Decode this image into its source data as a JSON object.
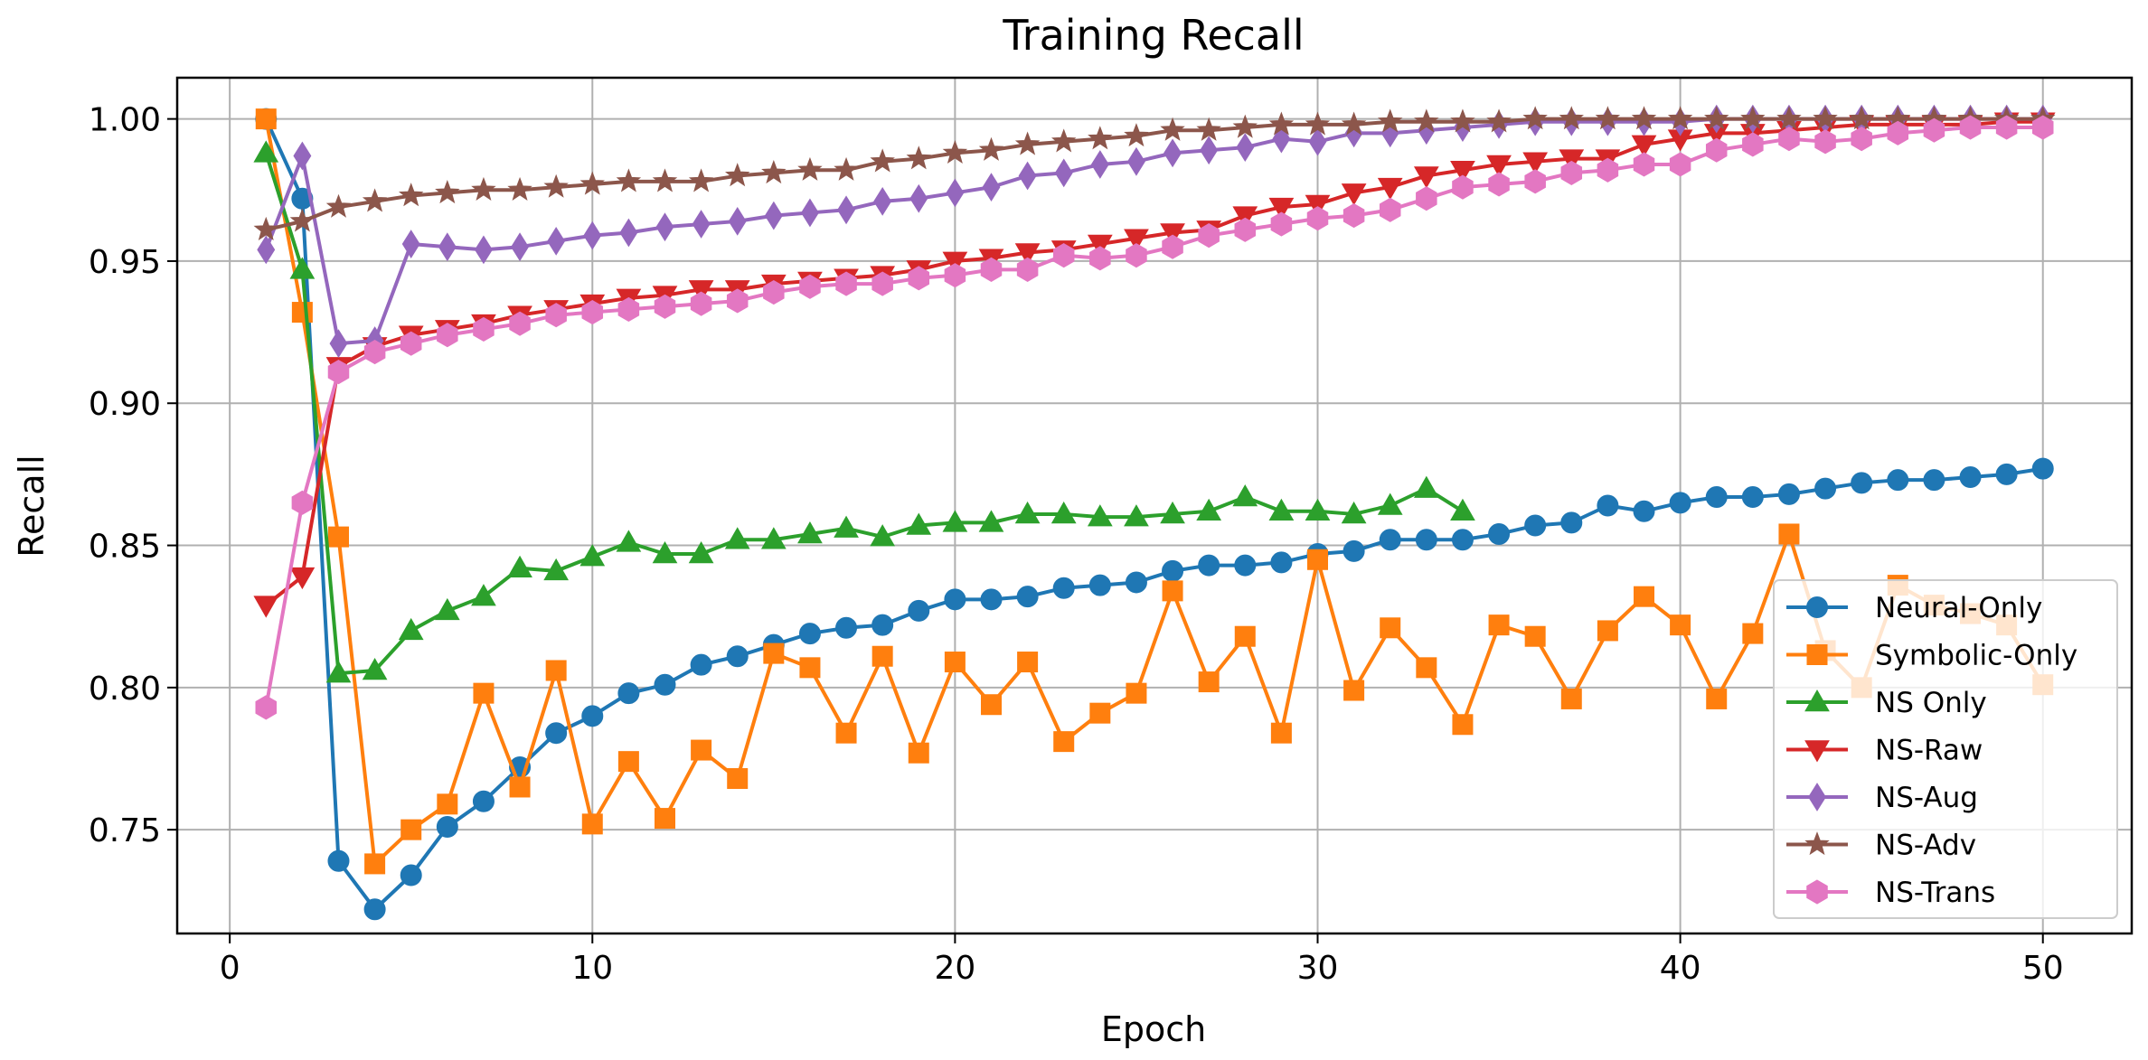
{
  "chart_data": {
    "type": "line",
    "title": "Training Recall",
    "xlabel": "Epoch",
    "ylabel": "Recall",
    "xlim": [
      -1.45,
      52.45
    ],
    "ylim": [
      0.7135,
      1.0145
    ],
    "xticks": [
      0,
      10,
      20,
      30,
      40,
      50
    ],
    "yticks": [
      0.75,
      0.8,
      0.85,
      0.9,
      0.95,
      1.0
    ],
    "xtick_labels": [
      "0",
      "10",
      "20",
      "30",
      "40",
      "50"
    ],
    "ytick_labels": [
      "0.75",
      "0.80",
      "0.85",
      "0.90",
      "0.95",
      "1.00"
    ],
    "grid": true,
    "legend_position": "lower-right",
    "series": [
      {
        "name": "Neural-Only",
        "color": "#1f77b4",
        "marker": "circle",
        "x": [
          1,
          2,
          3,
          4,
          5,
          6,
          7,
          8,
          9,
          10,
          11,
          12,
          13,
          14,
          15,
          16,
          17,
          18,
          19,
          20,
          21,
          22,
          23,
          24,
          25,
          26,
          27,
          28,
          29,
          30,
          31,
          32,
          33,
          34,
          35,
          36,
          37,
          38,
          39,
          40,
          41,
          42,
          43,
          44,
          45,
          46,
          47,
          48,
          49,
          50
        ],
        "values": [
          1.0,
          0.972,
          0.739,
          0.722,
          0.734,
          0.751,
          0.76,
          0.772,
          0.784,
          0.79,
          0.798,
          0.801,
          0.808,
          0.811,
          0.815,
          0.819,
          0.821,
          0.822,
          0.827,
          0.831,
          0.831,
          0.832,
          0.835,
          0.836,
          0.837,
          0.841,
          0.843,
          0.843,
          0.844,
          0.847,
          0.848,
          0.852,
          0.852,
          0.852,
          0.854,
          0.857,
          0.858,
          0.864,
          0.862,
          0.865,
          0.867,
          0.867,
          0.868,
          0.87,
          0.872,
          0.873,
          0.873,
          0.874,
          0.875,
          0.877
        ]
      },
      {
        "name": "Symbolic-Only",
        "color": "#ff7f0e",
        "marker": "square",
        "x": [
          1,
          2,
          3,
          4,
          5,
          6,
          7,
          8,
          9,
          10,
          11,
          12,
          13,
          14,
          15,
          16,
          17,
          18,
          19,
          20,
          21,
          22,
          23,
          24,
          25,
          26,
          27,
          28,
          29,
          30,
          31,
          32,
          33,
          34,
          35,
          36,
          37,
          38,
          39,
          40,
          41,
          42,
          43,
          44,
          45,
          46,
          47,
          48,
          49,
          50
        ],
        "values": [
          1.0,
          0.932,
          0.853,
          0.738,
          0.75,
          0.759,
          0.798,
          0.765,
          0.806,
          0.752,
          0.774,
          0.754,
          0.778,
          0.768,
          0.812,
          0.807,
          0.784,
          0.811,
          0.777,
          0.809,
          0.794,
          0.809,
          0.781,
          0.791,
          0.798,
          0.834,
          0.802,
          0.818,
          0.784,
          0.845,
          0.799,
          0.821,
          0.807,
          0.787,
          0.822,
          0.818,
          0.796,
          0.82,
          0.832,
          0.822,
          0.796,
          0.819,
          0.854,
          0.813,
          0.8,
          0.836,
          0.829,
          0.826,
          0.822,
          0.801
        ]
      },
      {
        "name": "NS Only",
        "color": "#2ca02c",
        "marker": "triangle-up",
        "x": [
          1,
          2,
          3,
          4,
          5,
          6,
          7,
          8,
          9,
          10,
          11,
          12,
          13,
          14,
          15,
          16,
          17,
          18,
          19,
          20,
          21,
          22,
          23,
          24,
          25,
          26,
          27,
          28,
          29,
          30,
          31,
          32,
          33,
          34
        ],
        "values": [
          0.988,
          0.947,
          0.805,
          0.806,
          0.82,
          0.827,
          0.832,
          0.842,
          0.841,
          0.846,
          0.851,
          0.847,
          0.847,
          0.852,
          0.852,
          0.854,
          0.856,
          0.853,
          0.857,
          0.858,
          0.858,
          0.861,
          0.861,
          0.86,
          0.86,
          0.861,
          0.862,
          0.867,
          0.862,
          0.862,
          0.861,
          0.864,
          0.87,
          0.862
        ]
      },
      {
        "name": "NS-Raw",
        "color": "#d62728",
        "marker": "triangle-down",
        "x": [
          1,
          2,
          3,
          4,
          5,
          6,
          7,
          8,
          9,
          10,
          11,
          12,
          13,
          14,
          15,
          16,
          17,
          18,
          19,
          20,
          21,
          22,
          23,
          24,
          25,
          26,
          27,
          28,
          29,
          30,
          31,
          32,
          33,
          34,
          35,
          36,
          37,
          38,
          39,
          40,
          41,
          42,
          43,
          44,
          45,
          46,
          47,
          48,
          49,
          50
        ],
        "values": [
          0.829,
          0.839,
          0.913,
          0.92,
          0.924,
          0.926,
          0.928,
          0.931,
          0.933,
          0.935,
          0.937,
          0.938,
          0.94,
          0.94,
          0.942,
          0.943,
          0.944,
          0.945,
          0.947,
          0.95,
          0.951,
          0.953,
          0.954,
          0.956,
          0.958,
          0.96,
          0.961,
          0.966,
          0.969,
          0.97,
          0.974,
          0.976,
          0.98,
          0.982,
          0.984,
          0.985,
          0.986,
          0.986,
          0.991,
          0.993,
          0.995,
          0.995,
          0.996,
          0.997,
          0.998,
          0.998,
          0.998,
          0.998,
          0.999,
          0.999
        ]
      },
      {
        "name": "NS-Aug",
        "color": "#9467bd",
        "marker": "diamond",
        "x": [
          1,
          2,
          3,
          4,
          5,
          6,
          7,
          8,
          9,
          10,
          11,
          12,
          13,
          14,
          15,
          16,
          17,
          18,
          19,
          20,
          21,
          22,
          23,
          24,
          25,
          26,
          27,
          28,
          29,
          30,
          31,
          32,
          33,
          34,
          35,
          36,
          37,
          38,
          39,
          40,
          41,
          42,
          43,
          44,
          45,
          46,
          47,
          48,
          49,
          50
        ],
        "values": [
          0.954,
          0.987,
          0.921,
          0.922,
          0.956,
          0.955,
          0.954,
          0.955,
          0.957,
          0.959,
          0.96,
          0.962,
          0.963,
          0.964,
          0.966,
          0.967,
          0.968,
          0.971,
          0.972,
          0.974,
          0.976,
          0.98,
          0.981,
          0.984,
          0.985,
          0.988,
          0.989,
          0.99,
          0.993,
          0.992,
          0.995,
          0.995,
          0.996,
          0.997,
          0.998,
          0.999,
          0.999,
          0.999,
          0.999,
          0.999,
          1.0,
          1.0,
          1.0,
          1.0,
          1.0,
          1.0,
          1.0,
          1.0,
          1.0,
          1.0
        ]
      },
      {
        "name": "NS-Adv",
        "color": "#8c564b",
        "marker": "star",
        "x": [
          1,
          2,
          3,
          4,
          5,
          6,
          7,
          8,
          9,
          10,
          11,
          12,
          13,
          14,
          15,
          16,
          17,
          18,
          19,
          20,
          21,
          22,
          23,
          24,
          25,
          26,
          27,
          28,
          29,
          30,
          31,
          32,
          33,
          34,
          35,
          36,
          37,
          38,
          39,
          40,
          41,
          42,
          43,
          44,
          45,
          46,
          47,
          48,
          49,
          50
        ],
        "values": [
          0.961,
          0.964,
          0.969,
          0.971,
          0.973,
          0.974,
          0.975,
          0.975,
          0.976,
          0.977,
          0.978,
          0.978,
          0.978,
          0.98,
          0.981,
          0.982,
          0.982,
          0.985,
          0.986,
          0.988,
          0.989,
          0.991,
          0.992,
          0.993,
          0.994,
          0.996,
          0.996,
          0.997,
          0.998,
          0.998,
          0.998,
          0.999,
          0.999,
          0.999,
          0.999,
          1.0,
          1.0,
          1.0,
          1.0,
          1.0,
          1.0,
          1.0,
          1.0,
          1.0,
          1.0,
          1.0,
          1.0,
          1.0,
          1.0,
          1.0
        ]
      },
      {
        "name": "NS-Trans",
        "color": "#e377c2",
        "marker": "hexagon",
        "x": [
          1,
          2,
          3,
          4,
          5,
          6,
          7,
          8,
          9,
          10,
          11,
          12,
          13,
          14,
          15,
          16,
          17,
          18,
          19,
          20,
          21,
          22,
          23,
          24,
          25,
          26,
          27,
          28,
          29,
          30,
          31,
          32,
          33,
          34,
          35,
          36,
          37,
          38,
          39,
          40,
          41,
          42,
          43,
          44,
          45,
          46,
          47,
          48,
          49,
          50
        ],
        "values": [
          0.793,
          0.865,
          0.911,
          0.918,
          0.921,
          0.924,
          0.926,
          0.928,
          0.931,
          0.932,
          0.933,
          0.934,
          0.935,
          0.936,
          0.939,
          0.941,
          0.942,
          0.942,
          0.944,
          0.945,
          0.947,
          0.947,
          0.952,
          0.951,
          0.952,
          0.955,
          0.959,
          0.961,
          0.963,
          0.965,
          0.966,
          0.968,
          0.972,
          0.976,
          0.977,
          0.978,
          0.981,
          0.982,
          0.984,
          0.984,
          0.989,
          0.991,
          0.993,
          0.992,
          0.993,
          0.995,
          0.996,
          0.997,
          0.997,
          0.997
        ]
      }
    ]
  }
}
